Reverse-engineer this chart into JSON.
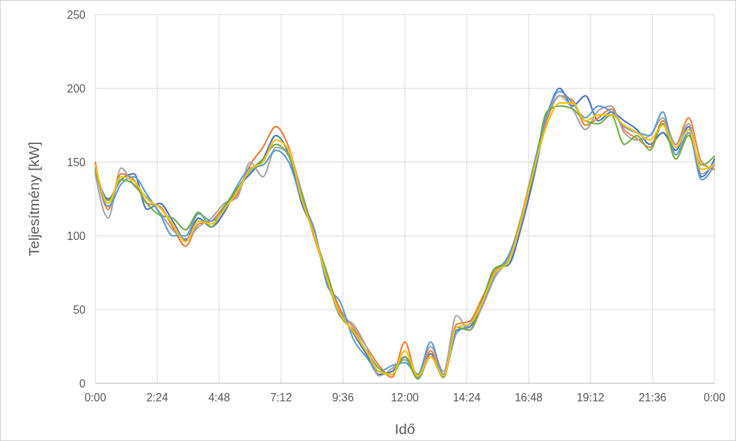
{
  "chart_data": {
    "type": "line",
    "xlabel": "Idő",
    "ylabel": "Teljesítmény [kW]",
    "x": [
      0,
      0.5,
      1,
      1.5,
      2,
      2.5,
      3,
      3.5,
      4,
      4.5,
      5,
      5.5,
      6,
      6.5,
      7,
      7.5,
      8,
      8.5,
      9,
      9.5,
      10,
      10.5,
      11,
      11.5,
      12,
      12.5,
      13,
      13.5,
      14,
      14.5,
      15,
      15.5,
      16,
      16.5,
      17,
      17.5,
      18,
      18.5,
      19,
      19.5,
      20,
      20.5,
      21,
      21.5,
      22,
      22.5,
      23,
      23.5,
      24
    ],
    "series": [
      {
        "color": "#4472c4",
        "values": [
          145,
          125,
          138,
          142,
          118,
          122,
          110,
          97,
          112,
          106,
          116,
          132,
          142,
          152,
          168,
          155,
          122,
          102,
          68,
          48,
          34,
          20,
          6,
          8,
          18,
          6,
          20,
          6,
          36,
          38,
          56,
          78,
          80,
          105,
          140,
          180,
          200,
          188,
          195,
          178,
          184,
          178,
          172,
          162,
          170,
          158,
          174,
          140,
          152
        ]
      },
      {
        "color": "#ed7d31",
        "values": [
          150,
          118,
          142,
          138,
          122,
          120,
          106,
          93,
          108,
          110,
          120,
          128,
          148,
          160,
          174,
          160,
          128,
          98,
          72,
          50,
          38,
          25,
          12,
          4,
          28,
          3,
          22,
          4,
          40,
          42,
          58,
          76,
          85,
          112,
          148,
          178,
          195,
          192,
          175,
          180,
          186,
          172,
          166,
          160,
          178,
          162,
          180,
          150,
          145
        ]
      },
      {
        "color": "#a5a5a5",
        "values": [
          142,
          112,
          146,
          134,
          126,
          116,
          104,
          98,
          106,
          112,
          122,
          126,
          150,
          140,
          160,
          156,
          130,
          100,
          70,
          45,
          40,
          25,
          5,
          10,
          16,
          4,
          25,
          8,
          46,
          36,
          52,
          72,
          84,
          108,
          146,
          180,
          195,
          186,
          172,
          185,
          188,
          170,
          165,
          168,
          180,
          162,
          176,
          142,
          150
        ]
      },
      {
        "color": "#5b9bd5",
        "values": [
          146,
          120,
          135,
          140,
          128,
          115,
          100,
          100,
          115,
          110,
          118,
          134,
          146,
          148,
          158,
          150,
          124,
          104,
          66,
          55,
          30,
          18,
          8,
          12,
          14,
          6,
          28,
          6,
          34,
          40,
          54,
          74,
          86,
          110,
          148,
          182,
          198,
          190,
          180,
          188,
          184,
          174,
          170,
          168,
          184,
          155,
          170,
          138,
          148
        ]
      },
      {
        "color": "#70ad47",
        "values": [
          144,
          124,
          138,
          135,
          122,
          114,
          112,
          104,
          116,
          106,
          120,
          132,
          144,
          152,
          162,
          154,
          128,
          100,
          74,
          46,
          36,
          22,
          10,
          6,
          18,
          3,
          18,
          4,
          38,
          36,
          56,
          78,
          82,
          112,
          142,
          184,
          188,
          186,
          178,
          176,
          182,
          162,
          168,
          158,
          176,
          152,
          168,
          148,
          154
        ]
      },
      {
        "color": "#ffc000",
        "values": [
          148,
          122,
          140,
          137,
          125,
          119,
          108,
          96,
          110,
          108,
          118,
          130,
          145,
          150,
          165,
          158,
          125,
          100,
          70,
          47,
          35,
          22,
          8,
          6,
          22,
          5,
          18,
          5,
          38,
          40,
          55,
          75,
          82,
          110,
          145,
          175,
          190,
          190,
          178,
          182,
          182,
          175,
          170,
          165,
          175,
          160,
          172,
          145,
          148
        ]
      }
    ],
    "xlim": [
      0,
      24
    ],
    "xticks": [
      {
        "value": 0,
        "label": "0:00"
      },
      {
        "value": 2.4,
        "label": "2:24"
      },
      {
        "value": 4.8,
        "label": "4:48"
      },
      {
        "value": 7.2,
        "label": "7:12"
      },
      {
        "value": 9.6,
        "label": "9:36"
      },
      {
        "value": 12,
        "label": "12:00"
      },
      {
        "value": 14.4,
        "label": "14:24"
      },
      {
        "value": 16.8,
        "label": "16:48"
      },
      {
        "value": 19.2,
        "label": "19:12"
      },
      {
        "value": 21.6,
        "label": "21:36"
      },
      {
        "value": 24,
        "label": "0:00"
      }
    ],
    "ylim": [
      0,
      250
    ],
    "yticks": [
      0,
      50,
      100,
      150,
      200,
      250
    ],
    "grid": true
  }
}
